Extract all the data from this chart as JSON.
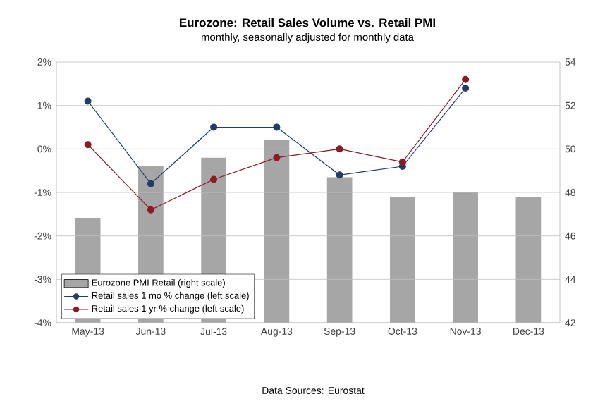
{
  "chart_data": {
    "type": "line",
    "title": "Eurozone: Retail Sales Volume vs. Retail PMI",
    "subtitle": "monthly, seasonally adjusted for monthly data",
    "categories": [
      "May-13",
      "Jun-13",
      "Jul-13",
      "Aug-13",
      "Sep-13",
      "Oct-13",
      "Nov-13",
      "Dec-13"
    ],
    "series": [
      {
        "name": "Eurozone PMI Retail (right scale)",
        "type": "bar",
        "axis": "y2",
        "color": "#a6a6a6",
        "values": [
          46.8,
          49.2,
          49.6,
          50.4,
          48.7,
          47.8,
          48.0,
          47.8
        ]
      },
      {
        "name": "Retail sales 1 mo % change (left scale)",
        "color": "#1f3d66",
        "values": [
          1.1,
          -0.8,
          0.5,
          0.5,
          -0.6,
          -0.4,
          1.4,
          null
        ]
      },
      {
        "name": "Retail sales 1 yr % change (left scale)",
        "color": "#8b1a22",
        "values": [
          0.1,
          -1.4,
          -0.7,
          -0.2,
          0.0,
          -0.3,
          1.6,
          null
        ]
      }
    ],
    "ylim": [
      -4,
      2
    ],
    "yticks": [
      {
        "value": -4,
        "label": "-4%"
      },
      {
        "value": -3,
        "label": "-3%"
      },
      {
        "value": -2,
        "label": "-2%"
      },
      {
        "value": -1,
        "label": "-1%"
      },
      {
        "value": 0,
        "label": "0%"
      },
      {
        "value": 1,
        "label": "1%"
      },
      {
        "value": 2,
        "label": "2%"
      }
    ],
    "y2lim": [
      42,
      54
    ],
    "y2ticks": [
      42,
      44,
      46,
      48,
      50,
      52,
      54
    ],
    "grid": "y",
    "legend": "bottom left",
    "marker": "circle",
    "annotations": [
      "Data Sources: Eurostat"
    ]
  }
}
